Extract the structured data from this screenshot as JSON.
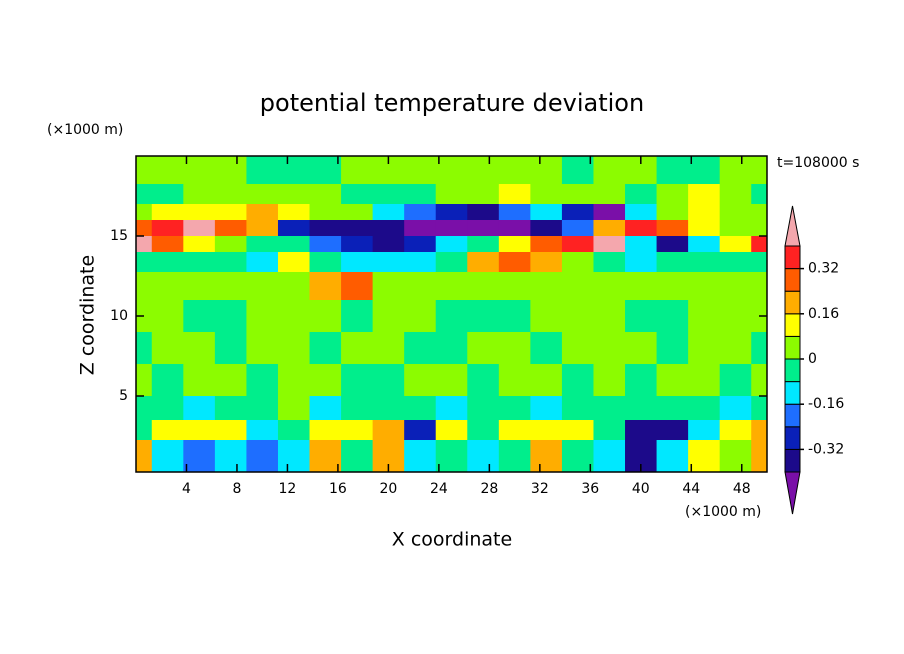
{
  "chart_data": {
    "type": "contour",
    "title": "potential temperature deviation",
    "xlabel": "X coordinate",
    "ylabel": "Z coordinate",
    "x_unit": "(×1000 m)",
    "y_unit": "(×1000 m)",
    "time_label": "t=108000 s",
    "xlim": [
      0,
      50
    ],
    "ylim": [
      0.25,
      20
    ],
    "xticks": [
      4,
      8,
      12,
      16,
      20,
      24,
      28,
      32,
      36,
      40,
      44,
      48
    ],
    "yticks": [
      5,
      10,
      15
    ],
    "x": [
      0,
      2.5,
      5,
      7.5,
      10,
      12.5,
      15,
      17.5,
      20,
      22.5,
      25,
      27.5,
      30,
      32.5,
      35,
      37.5,
      40,
      42.5,
      45,
      47.5,
      50
    ],
    "y": [
      19,
      17.5,
      16.5,
      15.5,
      14.5,
      13.5,
      12,
      10,
      8,
      6,
      4,
      3,
      1.5
    ],
    "z": [
      [
        0.04,
        0.04,
        0.04,
        0.04,
        -0.04,
        -0.04,
        -0.04,
        0.04,
        0.04,
        0.04,
        0.04,
        0.04,
        0.04,
        0.04,
        -0.04,
        0.04,
        0.04,
        -0.04,
        -0.04,
        0.04,
        0.04
      ],
      [
        -0.04,
        -0.04,
        0.04,
        0.04,
        0.04,
        0.04,
        0.04,
        -0.04,
        -0.04,
        -0.04,
        0.04,
        0.04,
        0.12,
        0.04,
        0.04,
        0.04,
        -0.04,
        0.04,
        0.12,
        0.04,
        -0.04
      ],
      [
        0.04,
        0.12,
        0.12,
        0.12,
        0.2,
        0.12,
        0.04,
        0.04,
        -0.12,
        -0.2,
        -0.28,
        -0.36,
        -0.2,
        -0.12,
        -0.28,
        -0.45,
        -0.12,
        0.04,
        0.12,
        0.04,
        0.04
      ],
      [
        0.28,
        0.36,
        0.45,
        0.28,
        0.2,
        -0.28,
        -0.36,
        -0.36,
        -0.36,
        -0.45,
        -0.45,
        -0.45,
        -0.45,
        -0.36,
        -0.2,
        0.2,
        0.36,
        0.28,
        0.12,
        0.04,
        0.04
      ],
      [
        0.45,
        0.28,
        0.12,
        0.04,
        -0.04,
        -0.04,
        -0.2,
        -0.28,
        -0.36,
        -0.28,
        -0.12,
        -0.04,
        0.12,
        0.28,
        0.36,
        0.45,
        -0.12,
        -0.36,
        -0.12,
        0.12,
        0.36
      ],
      [
        -0.04,
        -0.04,
        -0.04,
        -0.04,
        -0.12,
        0.12,
        -0.04,
        -0.12,
        -0.12,
        -0.12,
        -0.04,
        0.2,
        0.28,
        0.2,
        0.04,
        -0.04,
        -0.12,
        -0.04,
        -0.04,
        -0.04,
        -0.04
      ],
      [
        0.04,
        0.04,
        0.04,
        0.04,
        0.04,
        0.04,
        0.2,
        0.28,
        0.04,
        0.04,
        0.04,
        0.04,
        0.04,
        0.04,
        0.04,
        0.04,
        0.04,
        0.04,
        0.04,
        0.04,
        0.04
      ],
      [
        0.04,
        0.04,
        -0.04,
        -0.04,
        0.04,
        0.04,
        0.04,
        -0.04,
        0.04,
        0.04,
        -0.04,
        -0.04,
        -0.04,
        0.04,
        0.04,
        0.04,
        -0.04,
        -0.04,
        0.04,
        0.04,
        0.04
      ],
      [
        -0.04,
        0.04,
        0.04,
        -0.04,
        0.04,
        0.04,
        -0.04,
        0.04,
        0.04,
        -0.04,
        -0.04,
        0.04,
        0.04,
        -0.04,
        0.04,
        0.04,
        0.04,
        -0.04,
        0.04,
        0.04,
        -0.04
      ],
      [
        0.04,
        -0.04,
        0.04,
        0.04,
        -0.04,
        0.04,
        0.04,
        -0.04,
        -0.04,
        0.04,
        0.04,
        -0.04,
        0.04,
        0.04,
        -0.04,
        0.04,
        -0.04,
        0.04,
        0.04,
        -0.04,
        0.04
      ],
      [
        -0.04,
        -0.04,
        -0.12,
        -0.04,
        -0.04,
        0.04,
        -0.12,
        -0.04,
        -0.04,
        -0.04,
        -0.12,
        -0.04,
        -0.04,
        -0.12,
        -0.04,
        -0.04,
        -0.04,
        -0.04,
        -0.04,
        -0.12,
        -0.04
      ],
      [
        -0.04,
        0.12,
        0.12,
        0.12,
        -0.12,
        -0.04,
        0.12,
        0.12,
        0.2,
        -0.28,
        0.12,
        -0.04,
        0.12,
        0.12,
        0.12,
        -0.04,
        -0.36,
        -0.36,
        -0.12,
        0.12,
        0.2
      ],
      [
        0.2,
        -0.12,
        -0.2,
        -0.12,
        -0.2,
        -0.12,
        0.2,
        -0.04,
        0.2,
        -0.12,
        -0.04,
        -0.12,
        -0.04,
        0.2,
        -0.04,
        -0.12,
        -0.36,
        -0.12,
        0.12,
        0.04,
        0.2
      ]
    ],
    "levels": [
      -0.4,
      -0.32,
      -0.24,
      -0.16,
      -0.08,
      0,
      0.08,
      0.16,
      0.24,
      0.32,
      0.4
    ],
    "colors": [
      "#7a0fa8",
      "#1c0a8a",
      "#0a20b8",
      "#1e6eff",
      "#00e8ff",
      "#00ee8c",
      "#8cfc00",
      "#ffff00",
      "#ffad00",
      "#ff5c00",
      "#ff2222",
      "#f4a7ad"
    ],
    "colorbar_ticks": [
      -0.32,
      -0.16,
      0,
      0.16,
      0.32
    ]
  }
}
